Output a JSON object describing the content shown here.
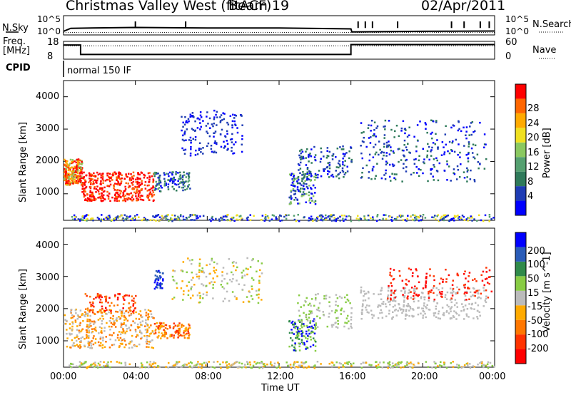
{
  "header": {
    "station": "Christmas Valley West (fitACF)",
    "beam": "Beam 19",
    "date": "02/Apr/2011"
  },
  "labels": {
    "nsky": "N.Sky",
    "nsearch": "N.Search",
    "freq": "Freq.",
    "freq_unit": "[MHz]",
    "nave": "Nave",
    "cpid": "CPID",
    "cpid_value": "normal 150 IF",
    "slant_range": "Slant Range [km]",
    "time_axis": "Time UT",
    "noise_ticks_left": [
      "10^5",
      "10^0"
    ],
    "noise_ticks_right": [
      "10^5",
      "10^0"
    ],
    "freq_ticks": [
      "18",
      "8"
    ],
    "nave_ticks": [
      "60",
      "0"
    ]
  },
  "colors": {
    "power": [
      "#0000ff",
      "#1e3cb4",
      "#2f7a5a",
      "#55a070",
      "#8ac860",
      "#f0e020",
      "#ffaa00",
      "#ff6600",
      "#ff0000"
    ],
    "velocity": [
      "#0000ff",
      "#2a5cb8",
      "#2f8a4a",
      "#88cc44",
      "#bbbbbb",
      "#ffaa00",
      "#ff7700",
      "#ff3300",
      "#ff0000"
    ]
  },
  "chart_data": [
    {
      "type": "line",
      "title": "",
      "xlabel": "",
      "ylabel": "N.Sky",
      "y2label": "N.Search",
      "x_range_hours": [
        0,
        24
      ],
      "ylim_log10": [
        0,
        5
      ],
      "series": [
        {
          "name": "N.Sky",
          "x": [
            0,
            0.4,
            4,
            8,
            12,
            16,
            16.05,
            20,
            24
          ],
          "y_log10": [
            0.5,
            1.5,
            1.8,
            1.6,
            1.6,
            1.3,
            0.3,
            0.5,
            0.6
          ]
        },
        {
          "name": "N.Search",
          "x": [
            0,
            24
          ],
          "y_log10": [
            0.1,
            0.1
          ]
        }
      ]
    },
    {
      "type": "line",
      "title": "",
      "ylabel": "Freq. [MHz]",
      "y2label": "Nave",
      "x_range_hours": [
        0,
        24
      ],
      "ylim": [
        8,
        18
      ],
      "y2lim": [
        0,
        60
      ],
      "series": [
        {
          "name": "Freq.",
          "x": [
            0,
            0.95,
            0.95,
            16,
            16,
            24
          ],
          "y": [
            16.5,
            16.5,
            10.2,
            10.2,
            16.8,
            16.8
          ]
        },
        {
          "name": "Nave",
          "x": [
            0,
            24
          ],
          "y2": [
            48,
            48
          ]
        }
      ],
      "cpid_label": "normal 150 IF"
    },
    {
      "type": "heatmap",
      "title": "",
      "xlabel": "",
      "ylabel": "Slant Range [km]",
      "colorbar_label": "Power [dB]",
      "colorbar_ticks": [
        "4",
        "8",
        "12",
        "16",
        "20",
        "24",
        "28"
      ],
      "x_range_hours": [
        0,
        24
      ],
      "ylim": [
        180,
        4500
      ],
      "yticks": [
        "1000",
        "2000",
        "3000",
        "4000"
      ]
    },
    {
      "type": "heatmap",
      "title": "",
      "xlabel": "Time UT",
      "ylabel": "Slant Range [km]",
      "colorbar_label": "Velocity [m s^-1]",
      "colorbar_ticks": [
        "200",
        "100",
        "50",
        "15",
        "-15",
        "-50",
        "-100",
        "-200"
      ],
      "x_range_hours": [
        0,
        24
      ],
      "xticks": [
        "00:00",
        "04:00",
        "08:00",
        "12:00",
        "16:00",
        "20:00",
        "00:00"
      ],
      "ylim": [
        180,
        4500
      ],
      "yticks": [
        "1000",
        "2000",
        "3000",
        "4000"
      ]
    }
  ]
}
